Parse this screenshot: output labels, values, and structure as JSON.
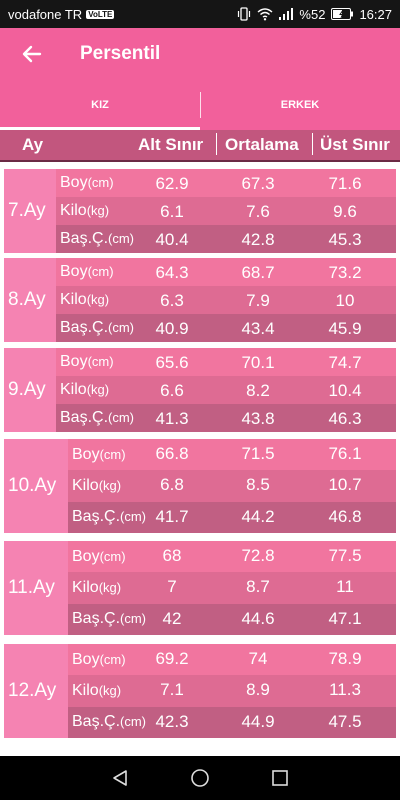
{
  "status": {
    "carrier": "vodafone TR",
    "volte": "VoLTE",
    "battery": "%52",
    "time": "16:27"
  },
  "appbar": {
    "title": "Persentil"
  },
  "tabs": [
    {
      "label": "KIZ",
      "active": true
    },
    {
      "label": "ERKEK",
      "active": false
    }
  ],
  "columns": {
    "month": "Ay",
    "low": "Alt Sınır",
    "mid": "Ortalama",
    "high": "Üst Sınır"
  },
  "months": [
    {
      "label": "7.Ay",
      "rows": [
        {
          "name": "Boy",
          "unit": "(cm)",
          "low": "62.9",
          "mid": "67.3",
          "high": "71.6"
        },
        {
          "name": "Kilo",
          "unit": "(kg)",
          "low": "6.1",
          "mid": "7.6",
          "high": "9.6"
        },
        {
          "name": "Baş.Ç.",
          "unit": "(cm)",
          "low": "40.4",
          "mid": "42.8",
          "high": "45.3"
        }
      ]
    },
    {
      "label": "8.Ay",
      "rows": [
        {
          "name": "Boy",
          "unit": "(cm)",
          "low": "64.3",
          "mid": "68.7",
          "high": "73.2"
        },
        {
          "name": "Kilo",
          "unit": "(kg)",
          "low": "6.3",
          "mid": "7.9",
          "high": "10"
        },
        {
          "name": "Baş.Ç.",
          "unit": "(cm)",
          "low": "40.9",
          "mid": "43.4",
          "high": "45.9"
        }
      ]
    },
    {
      "label": "9.Ay",
      "rows": [
        {
          "name": "Boy",
          "unit": "(cm)",
          "low": "65.6",
          "mid": "70.1",
          "high": "74.7"
        },
        {
          "name": "Kilo",
          "unit": "(kg)",
          "low": "6.6",
          "mid": "8.2",
          "high": "10.4"
        },
        {
          "name": "Baş.Ç.",
          "unit": "(cm)",
          "low": "41.3",
          "mid": "43.8",
          "high": "46.3"
        }
      ]
    },
    {
      "label": "10.Ay",
      "rows": [
        {
          "name": "Boy",
          "unit": "(cm)",
          "low": "66.8",
          "mid": "71.5",
          "high": "76.1"
        },
        {
          "name": "Kilo",
          "unit": "(kg)",
          "low": "6.8",
          "mid": "8.5",
          "high": "10.7"
        },
        {
          "name": "Baş.Ç.",
          "unit": "(cm)",
          "low": "41.7",
          "mid": "44.2",
          "high": "46.8"
        }
      ]
    },
    {
      "label": "11.Ay",
      "rows": [
        {
          "name": "Boy",
          "unit": "(cm)",
          "low": "68",
          "mid": "72.8",
          "high": "77.5"
        },
        {
          "name": "Kilo",
          "unit": "(kg)",
          "low": "7",
          "mid": "8.7",
          "high": "11"
        },
        {
          "name": "Baş.Ç.",
          "unit": "(cm)",
          "low": "42",
          "mid": "44.6",
          "high": "47.1"
        }
      ]
    },
    {
      "label": "12.Ay",
      "rows": [
        {
          "name": "Boy",
          "unit": "(cm)",
          "low": "69.2",
          "mid": "74",
          "high": "78.9"
        },
        {
          "name": "Kilo",
          "unit": "(kg)",
          "low": "7.1",
          "mid": "8.9",
          "high": "11.3"
        },
        {
          "name": "Baş.Ç.",
          "unit": "(cm)",
          "low": "42.3",
          "mid": "44.9",
          "high": "47.5"
        }
      ]
    }
  ],
  "icons": {
    "back": "arrow-back-icon",
    "nav_back": "triangle-back-icon",
    "nav_home": "circle-home-icon",
    "nav_recents": "square-recents-icon"
  },
  "colors": {
    "accent": "#f2609b",
    "header": "#c2567e",
    "row_light": "#f1759f",
    "row_mid": "#de6b93",
    "row_dark": "#c15f83"
  }
}
